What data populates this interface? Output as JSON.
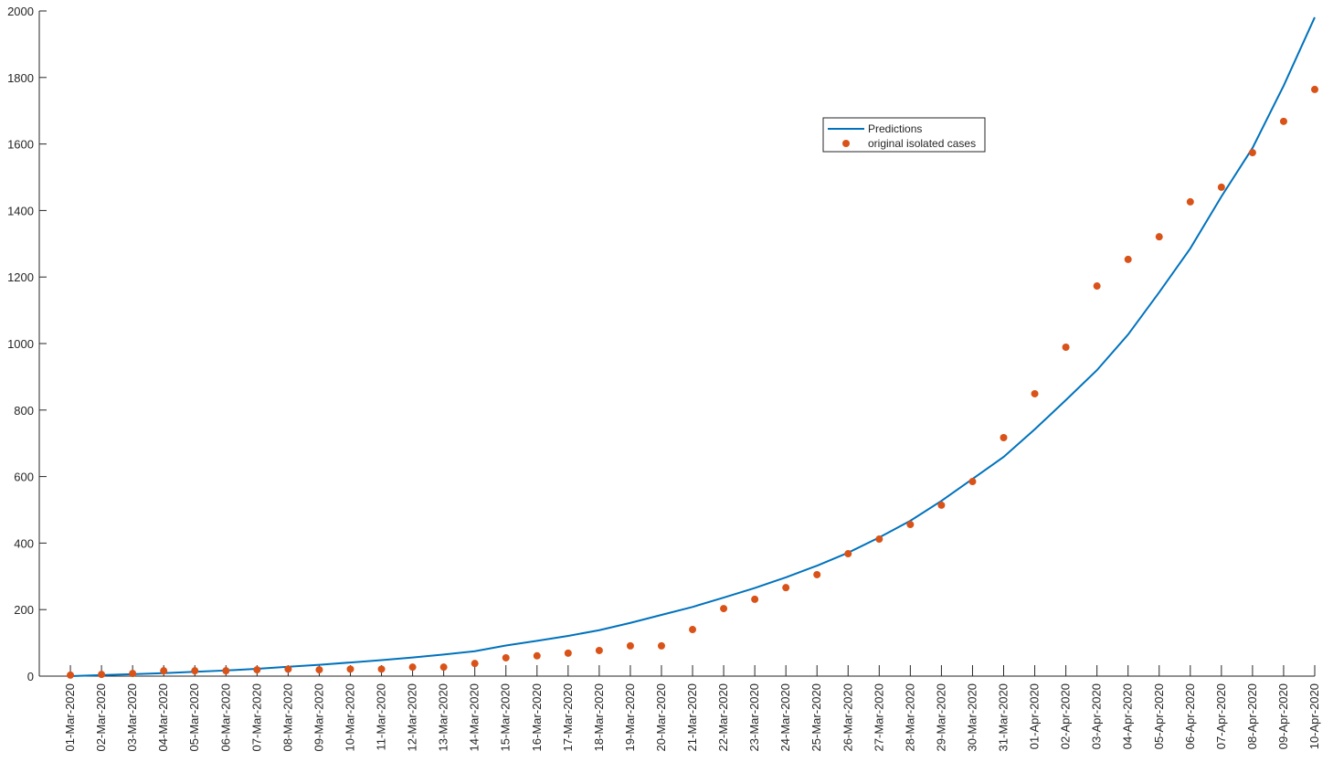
{
  "chart_data": {
    "type": "line",
    "categories": [
      "01-Mar-2020",
      "02-Mar-2020",
      "03-Mar-2020",
      "04-Mar-2020",
      "05-Mar-2020",
      "06-Mar-2020",
      "07-Mar-2020",
      "08-Mar-2020",
      "09-Mar-2020",
      "10-Mar-2020",
      "11-Mar-2020",
      "12-Mar-2020",
      "13-Mar-2020",
      "14-Mar-2020",
      "15-Mar-2020",
      "16-Mar-2020",
      "17-Mar-2020",
      "18-Mar-2020",
      "19-Mar-2020",
      "20-Mar-2020",
      "21-Mar-2020",
      "22-Mar-2020",
      "23-Mar-2020",
      "24-Mar-2020",
      "25-Mar-2020",
      "26-Mar-2020",
      "27-Mar-2020",
      "28-Mar-2020",
      "29-Mar-2020",
      "30-Mar-2020",
      "31-Mar-2020",
      "01-Apr-2020",
      "02-Apr-2020",
      "03-Apr-2020",
      "04-Apr-2020",
      "05-Apr-2020",
      "06-Apr-2020",
      "07-Apr-2020",
      "08-Apr-2020",
      "09-Apr-2020",
      "10-Apr-2020"
    ],
    "series": [
      {
        "name": "Predictions",
        "color": "#0072bd",
        "mode": "line",
        "values": [
          0,
          3,
          6,
          9,
          13,
          17,
          22,
          28,
          34,
          41,
          48,
          56,
          65,
          75,
          92,
          106,
          121,
          138,
          160,
          184,
          208,
          236,
          265,
          297,
          332,
          371,
          417,
          467,
          527,
          593,
          659,
          742,
          830,
          920,
          1027,
          1154,
          1286,
          1442,
          1588,
          1775,
          1981
        ]
      },
      {
        "name": "original isolated cases",
        "color": "#d95319",
        "mode": "markers",
        "values": [
          3,
          5,
          8,
          16,
          16,
          16,
          19,
          21,
          19,
          21,
          21,
          27,
          27,
          38,
          55,
          61,
          69,
          77,
          91,
          91,
          140,
          203,
          231,
          266,
          305,
          368,
          412,
          456,
          514,
          585,
          717,
          849,
          989,
          1173,
          1253,
          1321,
          1426,
          1470,
          1574,
          1668,
          1764
        ]
      }
    ],
    "ylim": [
      0,
      2000
    ],
    "yticks": [
      0,
      200,
      400,
      600,
      800,
      1000,
      1200,
      1400,
      1600,
      1800,
      2000
    ],
    "grid": false
  }
}
